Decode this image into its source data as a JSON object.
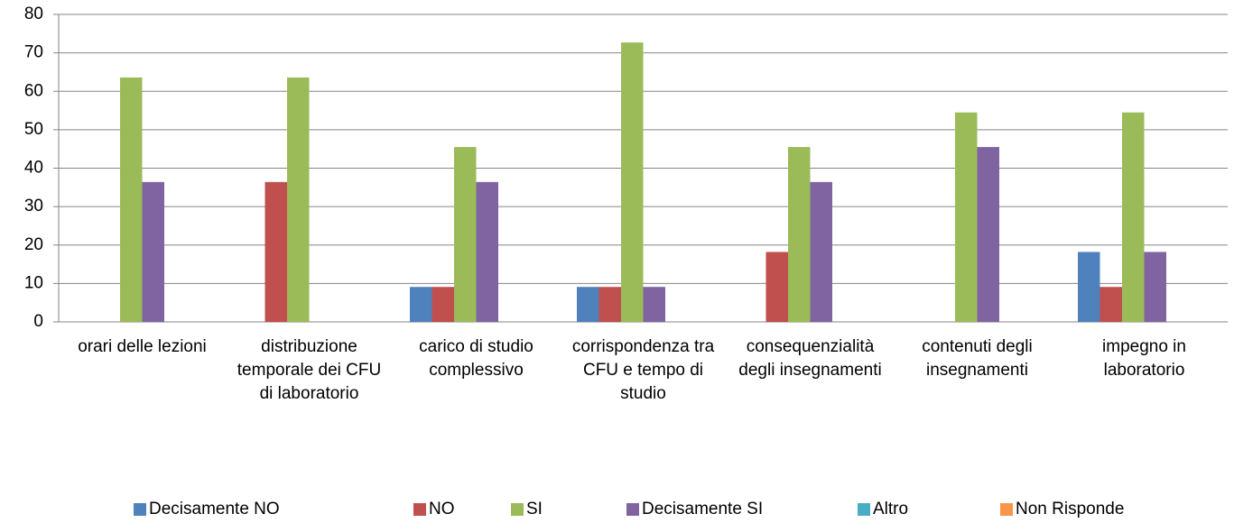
{
  "chart_data": {
    "type": "bar",
    "categories": [
      "orari delle lezioni",
      "distribuzione temporale dei CFU di laboratorio",
      "carico di studio complessivo",
      "corrispondenza tra CFU e tempo di studio",
      "consequenzialità degli insegnamenti",
      "contenuti degli insegnamenti",
      "impegno in laboratorio"
    ],
    "series": [
      {
        "name": "Decisamente NO",
        "color": "#4f81bd",
        "values": [
          0,
          0,
          9.1,
          9.1,
          0,
          0,
          18.2
        ]
      },
      {
        "name": "NO",
        "color": "#c0504d",
        "values": [
          0,
          36.4,
          9.1,
          9.1,
          18.2,
          0,
          9.1
        ]
      },
      {
        "name": "SI",
        "color": "#9bbb59",
        "values": [
          63.6,
          63.6,
          45.5,
          72.7,
          45.5,
          54.5,
          54.5
        ]
      },
      {
        "name": "Decisamente SI",
        "color": "#8064a2",
        "values": [
          36.4,
          0,
          36.4,
          9.1,
          36.4,
          45.5,
          18.2
        ]
      },
      {
        "name": "Altro",
        "color": "#4bacc6",
        "values": [
          0,
          0,
          0,
          0,
          0,
          0,
          0
        ]
      },
      {
        "name": "Non Risponde",
        "color": "#f79646",
        "values": [
          0,
          0,
          0,
          0,
          0,
          0,
          0
        ]
      }
    ],
    "ylim": [
      0,
      80
    ],
    "yticks": [
      0,
      10,
      20,
      30,
      40,
      50,
      60,
      70,
      80
    ],
    "grid": true,
    "legend": "bottom"
  }
}
